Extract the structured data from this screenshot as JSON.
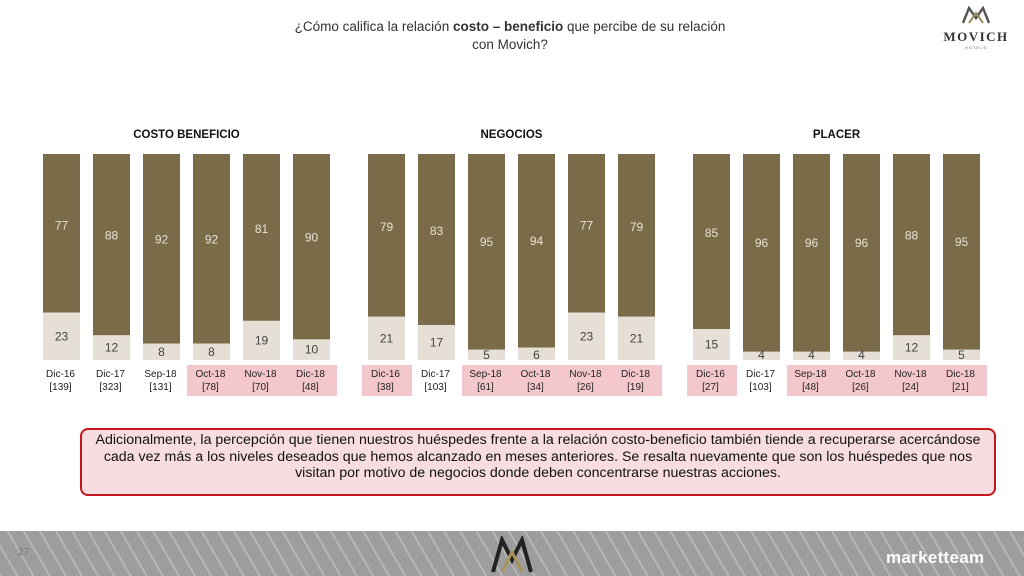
{
  "header": {
    "title_pre": "¿Cómo califica la relación ",
    "title_bold": "costo – beneficio",
    "title_post": " que percibe de su relación",
    "title_line2": "con Movich?"
  },
  "brand": {
    "name": "MOVICH",
    "sub": "HOTELS",
    "agency": "marketteam"
  },
  "callout": {
    "text": "Adicionalmente, la percepción que tienen nuestros huéspedes frente a la relación costo-beneficio también tiende a recuperarse acercándose cada vez más a los niveles deseados que hemos alcanzado en meses anteriores. Se resalta nuevamente que son los huéspedes que nos visitan por motivo de negocios donde deben concentrarse nuestras acciones."
  },
  "footer": {
    "page": "27"
  },
  "colors": {
    "top": "#7a6b49",
    "bottom": "#e5dfd5",
    "highlight": "#f3c7cb"
  },
  "chart_data": [
    {
      "type": "bar",
      "stacked": true,
      "title": "COSTO BENEFICIO",
      "categories": [
        "Dic-16",
        "Dic-17",
        "Sep-18",
        "Oct-18",
        "Nov-18",
        "Dic-18"
      ],
      "bases": [
        "[139]",
        "[323]",
        "[131]",
        "[78]",
        "[70]",
        "[48]"
      ],
      "highlighted": [
        false,
        false,
        false,
        true,
        true,
        true
      ],
      "series": [
        {
          "values": [
            77,
            88,
            92,
            92,
            81,
            90
          ]
        },
        {
          "values": [
            23,
            12,
            8,
            8,
            19,
            10
          ]
        }
      ],
      "ylim": [
        0,
        100
      ]
    },
    {
      "type": "bar",
      "stacked": true,
      "title": "NEGOCIOS",
      "categories": [
        "Dic-16",
        "Dic-17",
        "Sep-18",
        "Oct-18",
        "Nov-18",
        "Dic-18"
      ],
      "bases": [
        "[38]",
        "[103]",
        "[61]",
        "[34]",
        "[26]",
        "[19]"
      ],
      "highlighted": [
        true,
        false,
        true,
        true,
        true,
        true
      ],
      "series": [
        {
          "values": [
            79,
            83,
            95,
            94,
            77,
            79
          ]
        },
        {
          "values": [
            21,
            17,
            5,
            6,
            23,
            21
          ]
        }
      ],
      "ylim": [
        0,
        100
      ]
    },
    {
      "type": "bar",
      "stacked": true,
      "title": "PLACER",
      "categories": [
        "Dic-16",
        "Dic-17",
        "Sep-18",
        "Oct-18",
        "Nov-18",
        "Dic-18"
      ],
      "bases": [
        "[27]",
        "[103]",
        "[48]",
        "[26]",
        "[24]",
        "[21]"
      ],
      "highlighted": [
        true,
        false,
        true,
        true,
        true,
        true
      ],
      "series": [
        {
          "values": [
            85,
            96,
            96,
            96,
            88,
            95
          ]
        },
        {
          "values": [
            15,
            4,
            4,
            4,
            12,
            5
          ]
        }
      ],
      "ylim": [
        0,
        100
      ]
    }
  ]
}
